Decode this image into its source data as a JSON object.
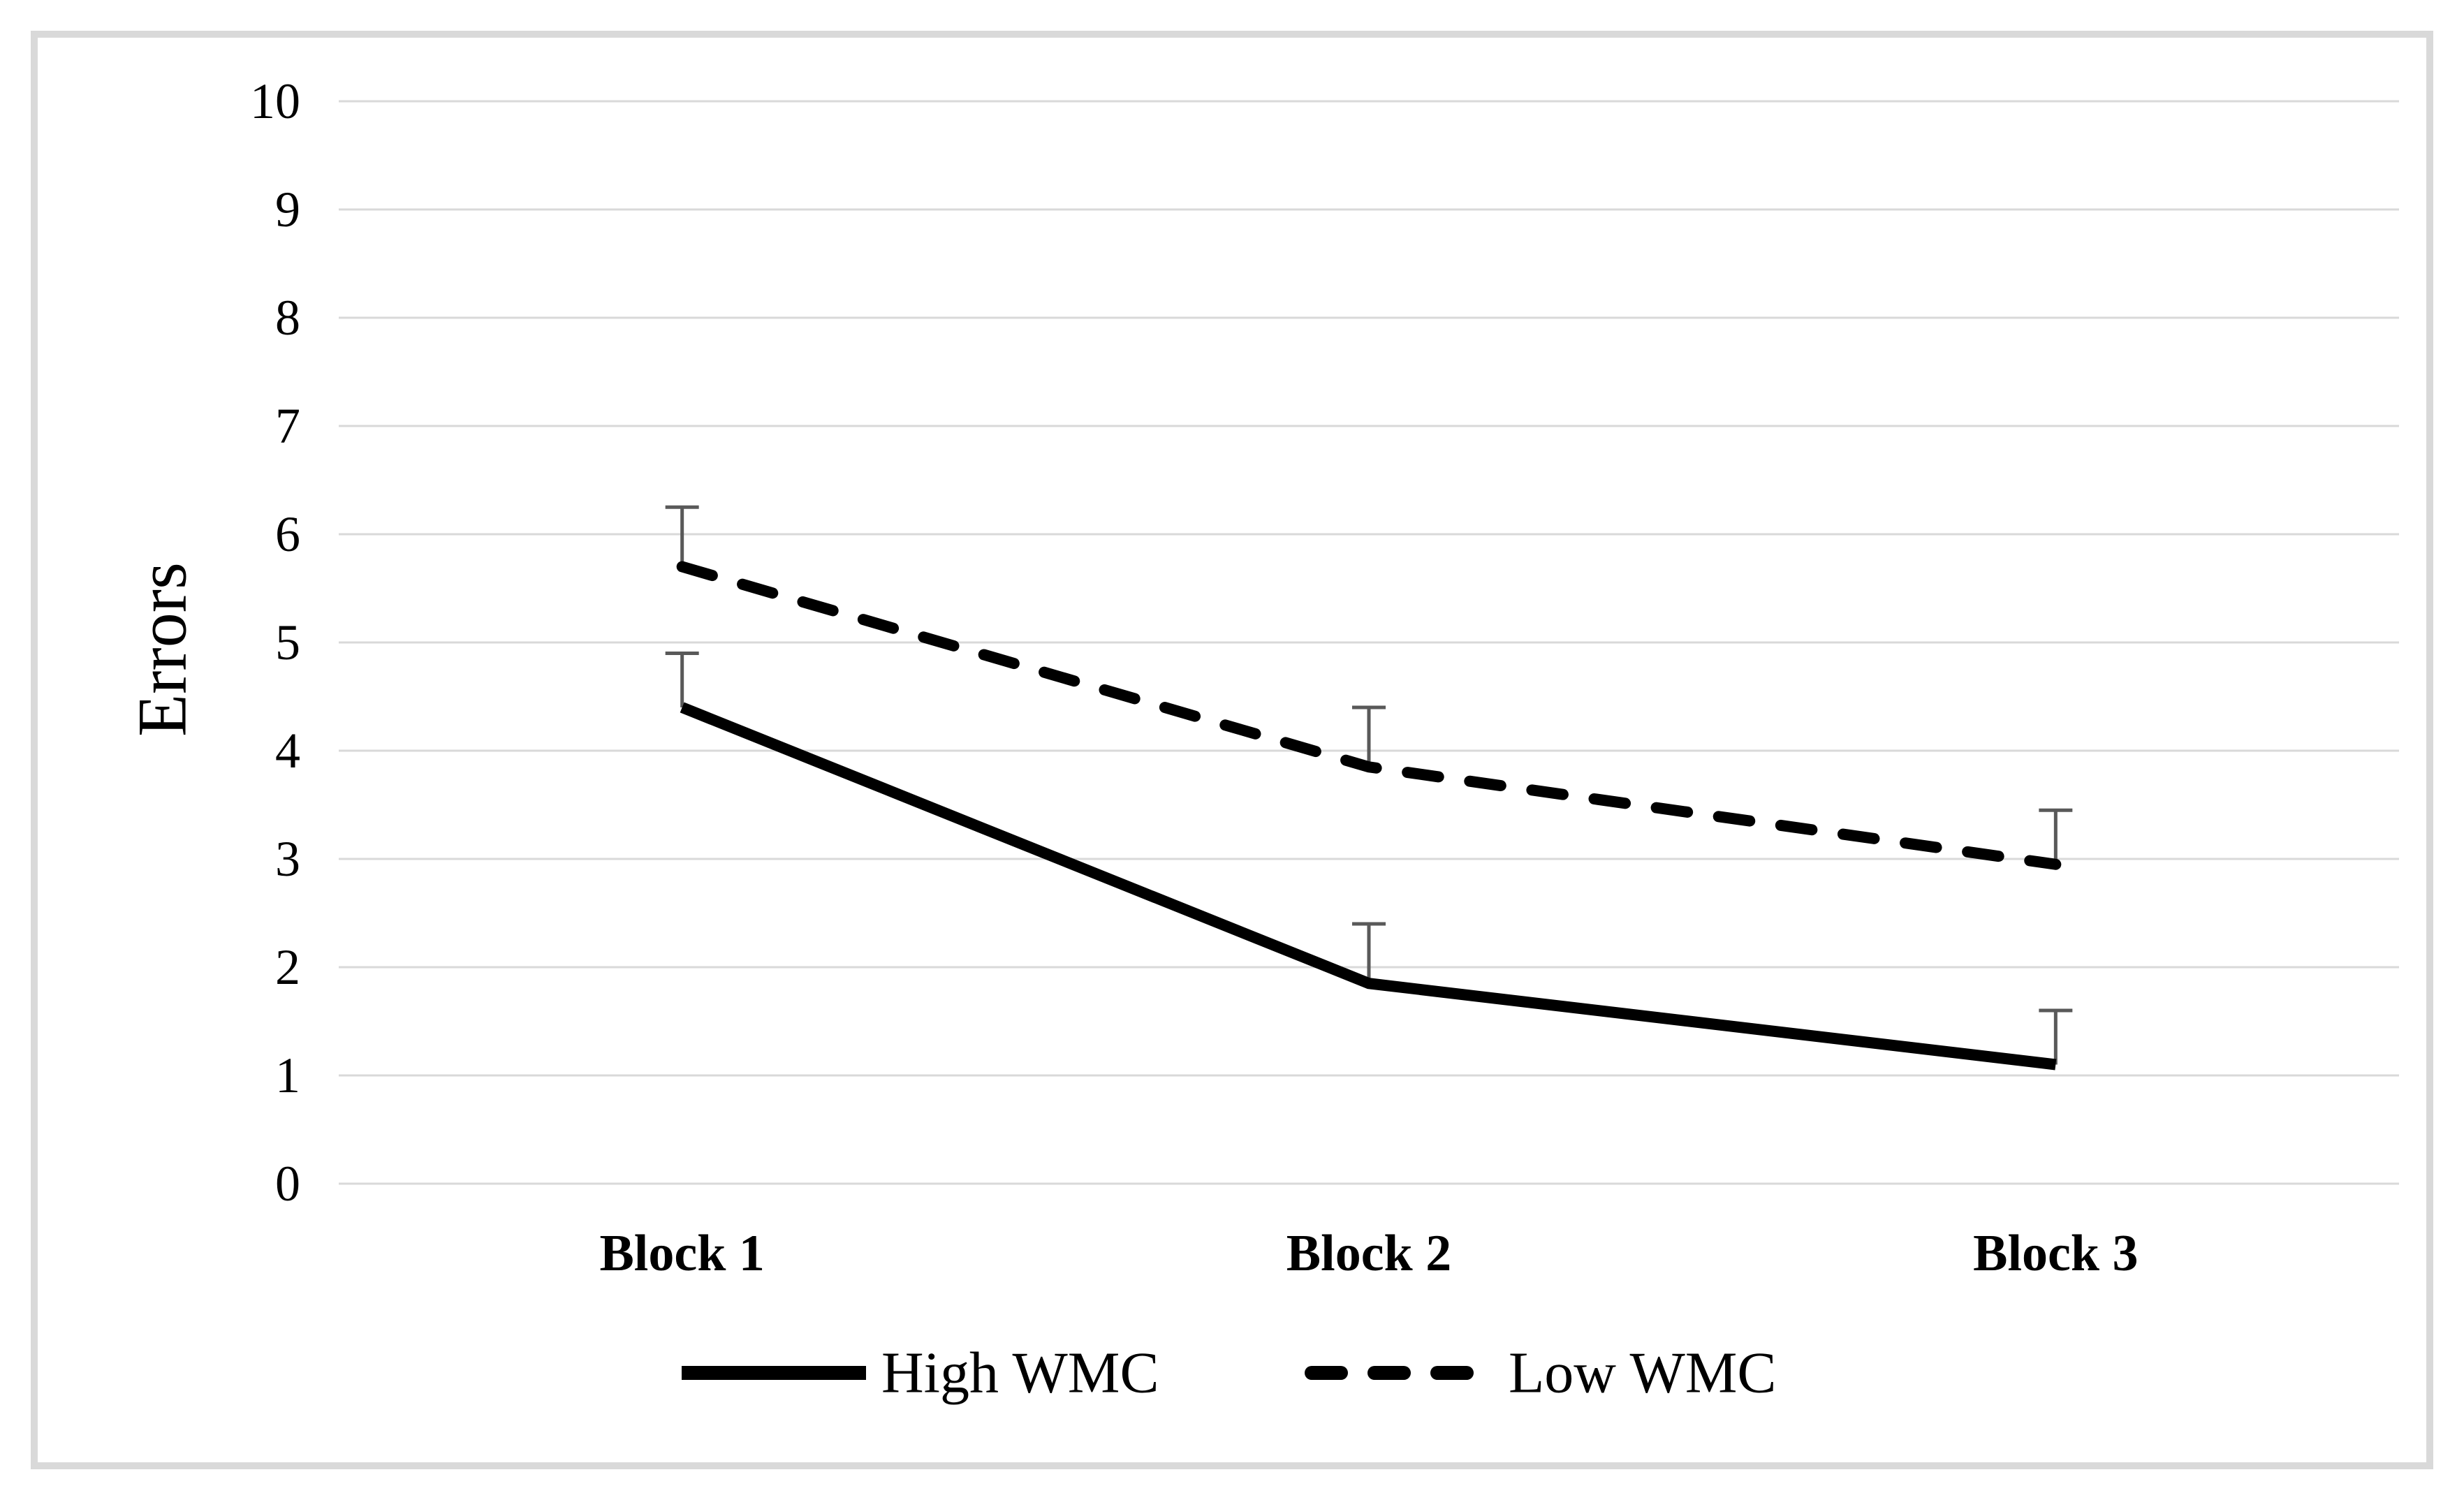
{
  "chart_data": {
    "type": "line",
    "title": "",
    "xlabel": "",
    "ylabel": "Errors",
    "categories": [
      "Block 1",
      "Block 2",
      "Block 3"
    ],
    "series": [
      {
        "name": "High WMC",
        "style": "solid",
        "values": [
          4.4,
          1.85,
          1.1
        ],
        "error_upper": [
          0.5,
          0.55,
          0.5
        ]
      },
      {
        "name": "Low WMC",
        "style": "dashed",
        "values": [
          5.7,
          3.85,
          2.95
        ],
        "error_upper": [
          0.55,
          0.55,
          0.5
        ]
      }
    ],
    "ylim": [
      0,
      10
    ],
    "ytick_step": 1,
    "yticks": [
      0,
      1,
      2,
      3,
      4,
      5,
      6,
      7,
      8,
      9,
      10
    ],
    "grid": "horizontal",
    "legend_position": "bottom",
    "error_bars": "upper",
    "colors": {
      "line": "#000000",
      "error_bar": "#595959",
      "gridline": "#d9d9d9",
      "frame_border": "#d9d9d9",
      "background": "#ffffff",
      "text": "#000000"
    }
  }
}
